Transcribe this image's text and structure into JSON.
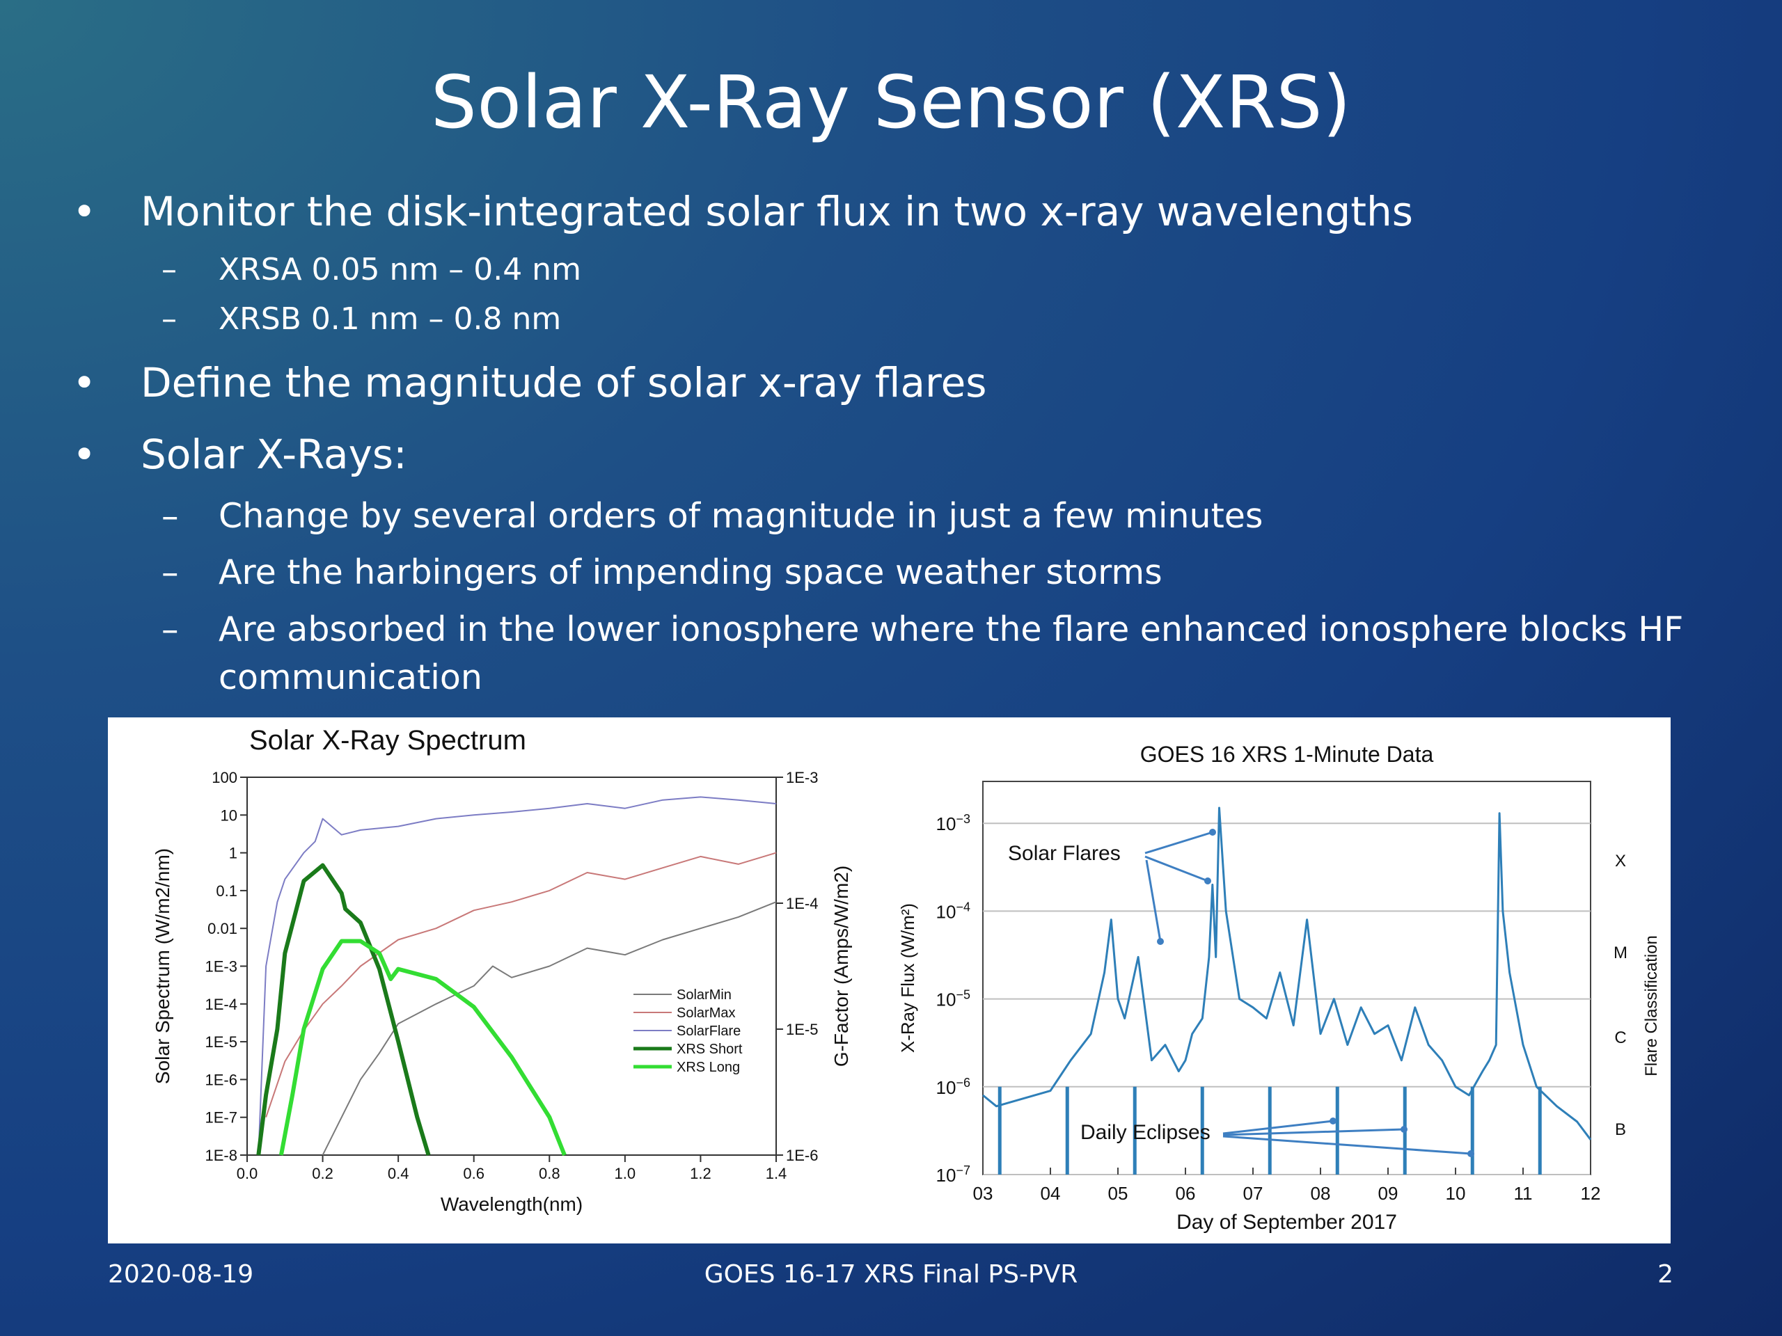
{
  "slide": {
    "title": "Solar X-Ray Sensor (XRS)",
    "bullets": [
      {
        "mark": "•",
        "text": "Monitor the disk-integrated solar flux in two x-ray wavelengths"
      },
      {
        "mark": "–",
        "text": "XRSA 0.05 nm – 0.4 nm"
      },
      {
        "mark": "–",
        "text": "XRSB 0.1 nm – 0.8 nm"
      },
      {
        "mark": "•",
        "text": "Define the magnitude of solar x-ray flares"
      },
      {
        "mark": "•",
        "text": "Solar X-Rays:"
      },
      {
        "mark": "–",
        "text": "Change by several orders of magnitude in just a few minutes"
      },
      {
        "mark": "–",
        "text": "Are the harbingers of impending space weather storms"
      },
      {
        "mark": "–",
        "text": "Are absorbed in the lower ionosphere where the flare enhanced ionosphere blocks HF"
      },
      {
        "mark": "",
        "text": "communication"
      }
    ],
    "footer": {
      "date": "2020-08-19",
      "center": "GOES  16-17 XRS Final PS-PVR",
      "page": "2"
    }
  },
  "chart_data": [
    {
      "type": "line",
      "title": "Solar X-Ray Spectrum",
      "xlabel": "Wavelength(nm)",
      "ylabel": "Solar Spectrum (W/m2/nm)",
      "y2label": "G-Factor (Amps/W/m2)",
      "xlim": [
        0.0,
        1.4
      ],
      "ylim": [
        1e-08,
        100
      ],
      "y2lim": [
        1e-06,
        0.001
      ],
      "yscale": "log",
      "x_ticks": [
        "0.0",
        "0.2",
        "0.4",
        "0.6",
        "0.8",
        "1.0",
        "1.2",
        "1.4"
      ],
      "y_ticks": [
        "100",
        "10",
        "1",
        "0.1",
        "0.01",
        "1E-3",
        "1E-4",
        "1E-5",
        "1E-6",
        "1E-7",
        "1E-8"
      ],
      "y2_ticks": [
        "1E-3",
        "1E-4",
        "1E-5",
        "1E-6"
      ],
      "legend_position": "right-middle",
      "series": [
        {
          "name": "SolarMin",
          "color": "#7a7a7a",
          "axis": "left",
          "x": [
            0.2,
            0.25,
            0.3,
            0.35,
            0.4,
            0.5,
            0.6,
            0.65,
            0.7,
            0.8,
            0.9,
            1.0,
            1.1,
            1.2,
            1.3,
            1.4
          ],
          "y": [
            1e-08,
            1e-07,
            1e-06,
            5e-06,
            3e-05,
            0.0001,
            0.0003,
            0.001,
            0.0005,
            0.001,
            0.003,
            0.002,
            0.005,
            0.01,
            0.02,
            0.05
          ]
        },
        {
          "name": "SolarMax",
          "color": "#c87878",
          "axis": "left",
          "x": [
            0.05,
            0.1,
            0.15,
            0.2,
            0.25,
            0.3,
            0.4,
            0.5,
            0.6,
            0.7,
            0.8,
            0.9,
            1.0,
            1.1,
            1.2,
            1.3,
            1.4
          ],
          "y": [
            1e-07,
            3e-06,
            2e-05,
            0.0001,
            0.0003,
            0.001,
            0.005,
            0.01,
            0.03,
            0.05,
            0.1,
            0.3,
            0.2,
            0.4,
            0.8,
            0.5,
            1.0
          ]
        },
        {
          "name": "SolarFlare",
          "color": "#7c7cc4",
          "axis": "left",
          "x": [
            0.03,
            0.05,
            0.08,
            0.1,
            0.15,
            0.18,
            0.2,
            0.25,
            0.3,
            0.4,
            0.5,
            0.6,
            0.7,
            0.8,
            0.9,
            1.0,
            1.1,
            1.2,
            1.3,
            1.4
          ],
          "y": [
            1e-08,
            0.001,
            0.05,
            0.2,
            1,
            2,
            8,
            3,
            4,
            5,
            8,
            10,
            12,
            15,
            20,
            15,
            25,
            30,
            25,
            20
          ]
        },
        {
          "name": "XRS Short",
          "color": "#1a7a1a",
          "axis": "right",
          "x": [
            0.03,
            0.05,
            0.08,
            0.1,
            0.15,
            0.2,
            0.25,
            0.26,
            0.3,
            0.35,
            0.4,
            0.45,
            0.48
          ],
          "y": [
            1e-06,
            3e-06,
            1e-05,
            4e-05,
            0.00015,
            0.0002,
            0.00012,
            9e-05,
            7e-05,
            3e-05,
            8e-06,
            2e-06,
            1e-06
          ]
        },
        {
          "name": "XRS Long",
          "color": "#33dd33",
          "axis": "right",
          "x": [
            0.09,
            0.12,
            0.15,
            0.2,
            0.25,
            0.3,
            0.35,
            0.38,
            0.4,
            0.5,
            0.6,
            0.7,
            0.8,
            0.84
          ],
          "y": [
            1e-06,
            3e-06,
            1e-05,
            3e-05,
            5e-05,
            5e-05,
            4e-05,
            2.5e-05,
            3e-05,
            2.5e-05,
            1.5e-05,
            6e-06,
            2e-06,
            1e-06
          ]
        }
      ]
    },
    {
      "type": "line",
      "title": "GOES 16 XRS 1-Minute Data",
      "xlabel": "Day of September 2017",
      "ylabel": "X-Ray Flux (W/m²)",
      "y2label": "Flare Classification",
      "xlim": [
        3,
        12
      ],
      "ylim": [
        1e-07,
        0.003
      ],
      "yscale": "log",
      "x_ticks": [
        "03",
        "04",
        "05",
        "06",
        "07",
        "08",
        "09",
        "10",
        "11",
        "12"
      ],
      "y_ticks": [
        {
          "base": "10",
          "exp": "−3"
        },
        {
          "base": "10",
          "exp": "−4"
        },
        {
          "base": "10",
          "exp": "−5"
        },
        {
          "base": "10",
          "exp": "−6"
        },
        {
          "base": "10",
          "exp": "−7"
        }
      ],
      "classes": [
        "X",
        "M",
        "C",
        "B"
      ],
      "annotations": [
        "Solar Flares",
        "Daily Eclipses"
      ],
      "series": [
        {
          "color": "#2e7fb8",
          "x": [
            3.0,
            3.2,
            3.5,
            4.0,
            4.3,
            4.6,
            4.8,
            4.9,
            5.0,
            5.1,
            5.3,
            5.5,
            5.7,
            5.9,
            6.0,
            6.1,
            6.25,
            6.35,
            6.4,
            6.45,
            6.5,
            6.6,
            6.8,
            7.0,
            7.2,
            7.4,
            7.6,
            7.8,
            8.0,
            8.2,
            8.4,
            8.6,
            8.8,
            9.0,
            9.2,
            9.4,
            9.6,
            9.8,
            10.0,
            10.2,
            10.4,
            10.5,
            10.6,
            10.65,
            10.7,
            10.8,
            11.0,
            11.2,
            11.5,
            11.8,
            12.0
          ],
          "y": [
            8e-07,
            6e-07,
            7e-07,
            9e-07,
            2e-06,
            4e-06,
            2e-05,
            8e-05,
            1e-05,
            6e-06,
            3e-05,
            2e-06,
            3e-06,
            1.5e-06,
            2e-06,
            4e-06,
            6e-06,
            3e-05,
            0.0002,
            3e-05,
            0.0015,
            0.0001,
            1e-05,
            8e-06,
            6e-06,
            2e-05,
            5e-06,
            8e-05,
            4e-06,
            1e-05,
            3e-06,
            8e-06,
            4e-06,
            5e-06,
            2e-06,
            8e-06,
            3e-06,
            2e-06,
            1e-06,
            8e-07,
            1.5e-06,
            2e-06,
            3e-06,
            0.0013,
            0.0001,
            2e-05,
            3e-06,
            1e-06,
            6e-07,
            4e-07,
            2.5e-07
          ]
        }
      ]
    }
  ]
}
